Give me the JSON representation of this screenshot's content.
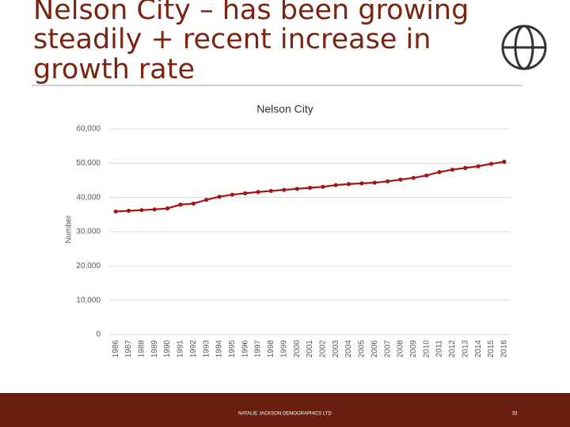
{
  "chart_data": {
    "type": "line",
    "title_lines": [
      "Nelson City – has been growing",
      "steadily + recent increase in",
      "growth rate"
    ],
    "title": "Nelson City",
    "y_label": "Number",
    "categories": [
      "1986",
      "1987",
      "1988",
      "1989",
      "1990",
      "1991",
      "1992",
      "1993",
      "1994",
      "1995",
      "1996",
      "1997",
      "1998",
      "1999",
      "2000",
      "2001",
      "2002",
      "2003",
      "2004",
      "2005",
      "2006",
      "2007",
      "2008",
      "2009",
      "2010",
      "2011",
      "2012",
      "2013",
      "2014",
      "2015",
      "2016"
    ],
    "series": [
      {
        "name": "Nelson City",
        "color": "#a31515",
        "values": [
          35900,
          36100,
          36300,
          36500,
          36800,
          37900,
          38200,
          39300,
          40200,
          40800,
          41200,
          41600,
          41900,
          42200,
          42500,
          42800,
          43100,
          43600,
          43900,
          44100,
          44300,
          44700,
          45200,
          45700,
          46400,
          47400,
          48100,
          48600,
          49100,
          49800,
          50400
        ]
      }
    ],
    "ylim": [
      0,
      60000
    ],
    "yticks": [
      {
        "value": 0,
        "label": "0"
      },
      {
        "value": 10000,
        "label": "10,000"
      },
      {
        "value": 20000,
        "label": "20,000"
      },
      {
        "value": 30000,
        "label": "30,000"
      },
      {
        "value": 40000,
        "label": "40,000"
      },
      {
        "value": 50000,
        "label": "50,000"
      },
      {
        "value": 60000,
        "label": "60,000"
      }
    ],
    "grid": true,
    "footer": "NATALIE JACKSON DEMOGRAPHICS LTD",
    "page_number": "33"
  }
}
